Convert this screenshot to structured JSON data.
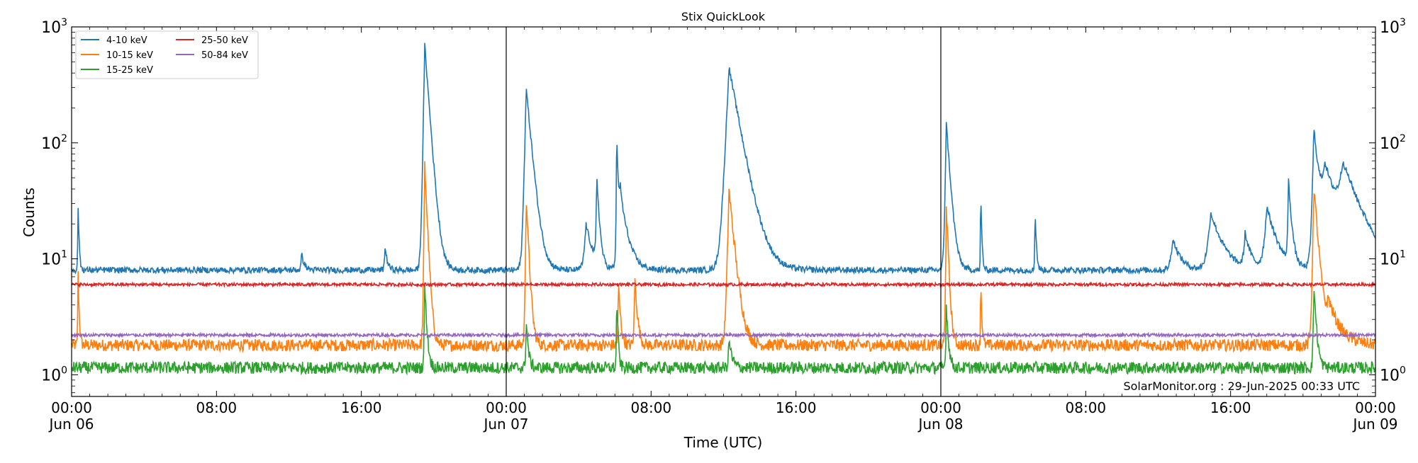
{
  "chart_data": {
    "type": "line",
    "title": "Stix QuickLook",
    "xlabel": "Time (UTC)",
    "ylabel": "Counts",
    "yscale": "log",
    "ylim": [
      0.65,
      1000
    ],
    "xlim_hours": [
      0,
      72
    ],
    "x_unit": "hours since 2025-06-06 00:00 UTC",
    "xticks": [
      {
        "x": 0,
        "time": "00:00",
        "date": "Jun 06"
      },
      {
        "x": 8,
        "time": "08:00",
        "date": ""
      },
      {
        "x": 16,
        "time": "16:00",
        "date": ""
      },
      {
        "x": 24,
        "time": "00:00",
        "date": "Jun 07"
      },
      {
        "x": 32,
        "time": "08:00",
        "date": ""
      },
      {
        "x": 40,
        "time": "16:00",
        "date": ""
      },
      {
        "x": 48,
        "time": "00:00",
        "date": "Jun 08"
      },
      {
        "x": 56,
        "time": "08:00",
        "date": ""
      },
      {
        "x": 64,
        "time": "16:00",
        "date": ""
      },
      {
        "x": 72,
        "time": "00:00",
        "date": "Jun 09"
      }
    ],
    "yticks": [
      {
        "value": 1,
        "base": "10",
        "exp": "0"
      },
      {
        "value": 10,
        "base": "10",
        "exp": "1"
      },
      {
        "value": 100,
        "base": "10",
        "exp": "2"
      },
      {
        "value": 1000,
        "base": "10",
        "exp": "3"
      }
    ],
    "day_dividers": [
      24,
      48
    ],
    "legend_placement": "top-left",
    "annotation": "SolarMonitor.org : 29-Jun-2025 00:33 UTC",
    "series": [
      {
        "name": "4-10 keV",
        "color": "#1f77b4",
        "base": 8,
        "peaks": [
          [
            0.35,
            32,
            0.05
          ],
          [
            12.7,
            11,
            0.15
          ],
          [
            17.3,
            13,
            0.12
          ],
          [
            19.5,
            700,
            0.2
          ],
          [
            25.1,
            300,
            0.25
          ],
          [
            28.4,
            20,
            0.35
          ],
          [
            29.0,
            50,
            0.12
          ],
          [
            30.1,
            110,
            0.08
          ],
          [
            30.3,
            35,
            0.35
          ],
          [
            36.3,
            450,
            0.5
          ],
          [
            48.3,
            150,
            0.18
          ],
          [
            50.2,
            38,
            0.05
          ],
          [
            53.2,
            28,
            0.06
          ],
          [
            60.8,
            15,
            0.4
          ],
          [
            62.9,
            25,
            0.6
          ],
          [
            64.8,
            16,
            0.3
          ],
          [
            66.0,
            28,
            0.5
          ],
          [
            67.2,
            45,
            0.15
          ],
          [
            68.6,
            130,
            0.25
          ],
          [
            69.2,
            58,
            0.8
          ],
          [
            70.2,
            55,
            0.9
          ]
        ]
      },
      {
        "name": "10-15 keV",
        "color": "#ff7f0e",
        "base": 1.8,
        "peaks": [
          [
            0.35,
            8.5,
            0.05
          ],
          [
            19.5,
            65,
            0.12
          ],
          [
            25.1,
            35,
            0.12
          ],
          [
            31.1,
            7,
            0.12
          ],
          [
            36.3,
            40,
            0.25
          ],
          [
            30.2,
            6,
            0.1
          ],
          [
            48.3,
            30,
            0.1
          ],
          [
            50.2,
            7,
            0.05
          ],
          [
            68.6,
            42,
            0.2
          ],
          [
            69.4,
            4,
            0.6
          ]
        ]
      },
      {
        "name": "15-25 keV",
        "color": "#2ca02c",
        "base": 1.15,
        "peaks": [
          [
            19.5,
            6,
            0.1
          ],
          [
            25.1,
            3,
            0.1
          ],
          [
            30.1,
            5,
            0.06
          ],
          [
            36.3,
            2,
            0.15
          ],
          [
            48.3,
            4,
            0.1
          ],
          [
            68.6,
            6,
            0.12
          ]
        ]
      },
      {
        "name": "25-50 keV",
        "color": "#d62728",
        "base": 6.0,
        "peaks": []
      },
      {
        "name": "50-84 keV",
        "color": "#9467bd",
        "base": 2.2,
        "peaks": []
      }
    ]
  }
}
